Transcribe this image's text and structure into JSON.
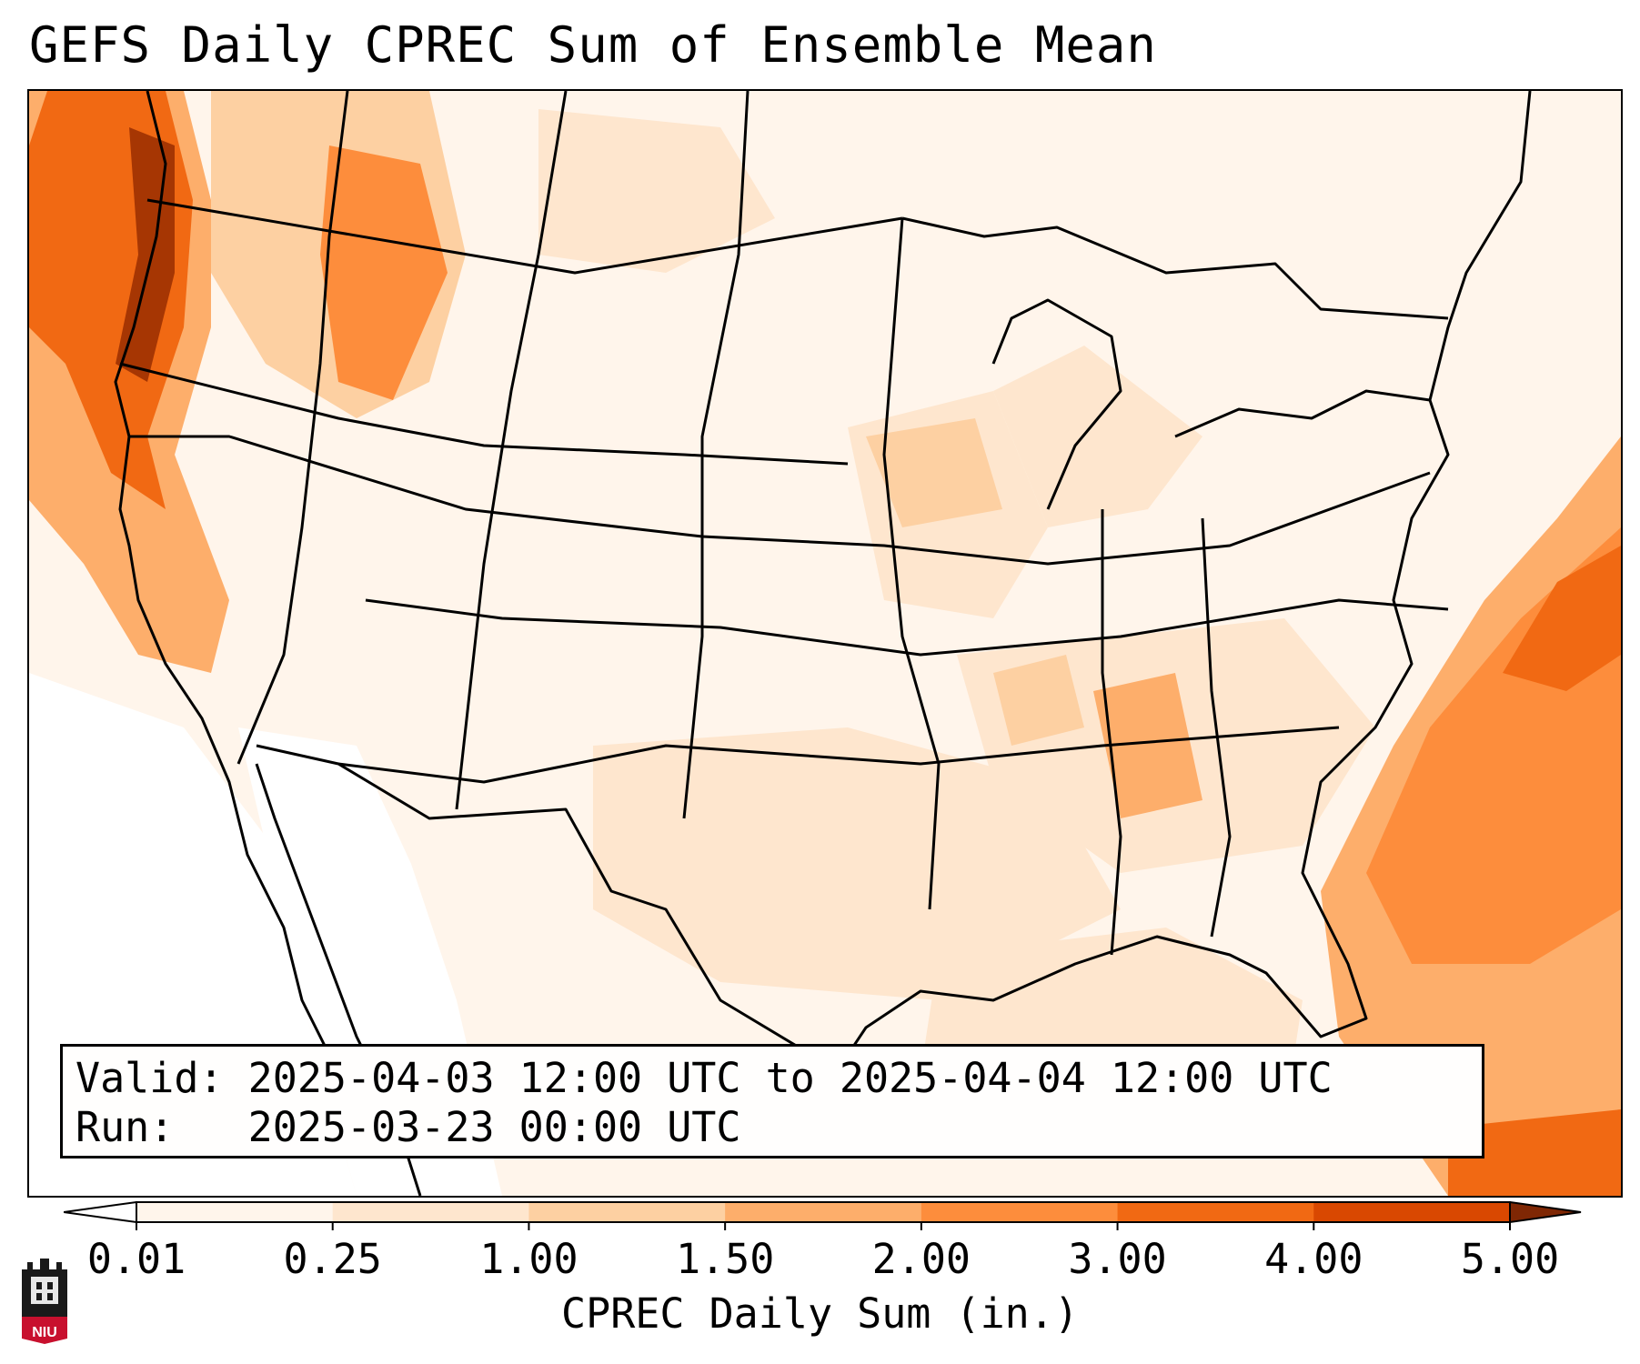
{
  "title": "GEFS Daily CPREC Sum of Ensemble Mean",
  "info": {
    "valid_line": "Valid: 2025-04-03 12:00 UTC to 2025-04-04 12:00 UTC",
    "run_line": "Run:   2025-03-23 00:00 UTC"
  },
  "colorbar": {
    "label": "CPREC Daily Sum (in.)",
    "ticks": [
      "0.01",
      "0.25",
      "1.00",
      "1.50",
      "2.00",
      "3.00",
      "4.00",
      "5.00"
    ],
    "colors": [
      "#fff5eb",
      "#fee6ce",
      "#fdd0a2",
      "#fdae6b",
      "#fd8d3c",
      "#f16913",
      "#d94801",
      "#a63603"
    ],
    "under_color": "#ffffff",
    "over_color": "#7f2704"
  },
  "logo": {
    "text": "NIU",
    "icon": "niu-castle-logo-icon"
  }
}
